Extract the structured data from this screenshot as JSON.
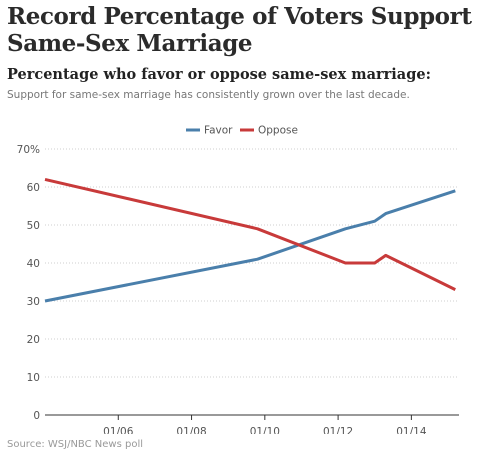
{
  "title": "Record Percentage of Voters Support Same-Sex Marriage",
  "subtitle": "Percentage who favor or oppose same-sex marriage:",
  "description": "Support for same-sex marriage has consistently grown over the last decade.",
  "source": "Source: WSJ/NBC News poll",
  "chart_data": {
    "type": "line",
    "title": "Percentage who favor or oppose same-sex marriage:",
    "xlabel": "",
    "ylabel": "",
    "ylim": [
      0,
      70
    ],
    "y_ticks": [
      0,
      10,
      20,
      30,
      40,
      50,
      60,
      70
    ],
    "y_tick_labels": [
      "0",
      "10",
      "20",
      "30",
      "40",
      "50",
      "60",
      "70%"
    ],
    "x_range": [
      2004.0,
      2015.3
    ],
    "x_ticks": [
      2006,
      2008,
      2010,
      2012,
      2014
    ],
    "x_tick_labels": [
      "01/06",
      "01/08",
      "01/10",
      "01/12",
      "01/14"
    ],
    "grid": "horizontal",
    "legend": "top-center",
    "series": [
      {
        "name": "Favor",
        "color": "#4a7fab",
        "points": [
          [
            2004.0,
            30
          ],
          [
            2009.8,
            41
          ],
          [
            2012.2,
            49
          ],
          [
            2013.0,
            51
          ],
          [
            2013.3,
            53
          ],
          [
            2015.2,
            59
          ]
        ]
      },
      {
        "name": "Oppose",
        "color": "#c83a3a",
        "points": [
          [
            2004.0,
            62
          ],
          [
            2009.8,
            49
          ],
          [
            2012.2,
            40
          ],
          [
            2013.0,
            40
          ],
          [
            2013.3,
            42
          ],
          [
            2015.2,
            33
          ]
        ]
      }
    ]
  }
}
